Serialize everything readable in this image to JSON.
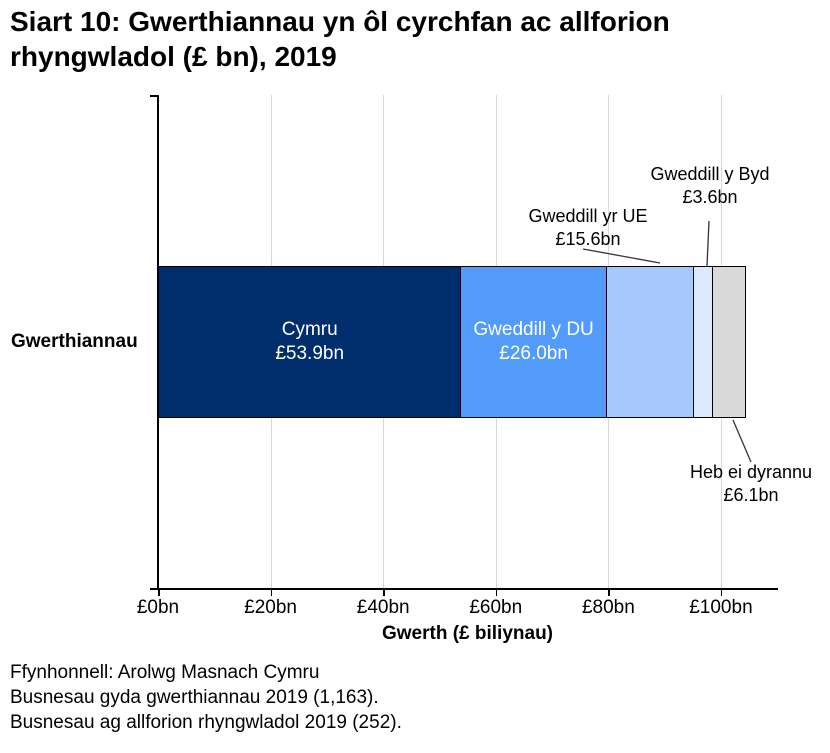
{
  "title": {
    "line1": "Siart 10: Gwerthiannau yn ôl cyrchfan ac allforion",
    "line2": "rhyngwladol (£ bn), 2019"
  },
  "chart_data": {
    "type": "bar",
    "orientation": "horizontal",
    "stacked": true,
    "category_label": "Gwerthiannau",
    "xlabel": "Gwerth (£ biliynau)",
    "xlim": [
      0,
      110
    ],
    "grid": true,
    "gridline_color": "#d9d9d9",
    "axis_color": "#000000",
    "x_ticks": [
      {
        "value": 0,
        "label": "£0bn"
      },
      {
        "value": 20,
        "label": "£20bn"
      },
      {
        "value": 40,
        "label": "£40bn"
      },
      {
        "value": 60,
        "label": "£60bn"
      },
      {
        "value": 80,
        "label": "£80bn"
      },
      {
        "value": 100,
        "label": "£100bn"
      }
    ],
    "segments": [
      {
        "name": "Cymru",
        "value": 53.9,
        "value_label": "£53.9bn",
        "color": "#002d6b",
        "label_inside": true,
        "label_color": "#ffffff"
      },
      {
        "name": "Gweddill y DU",
        "value": 26.0,
        "value_label": "£26.0bn",
        "color": "#529bfa",
        "label_inside": true,
        "label_color": "#ffffff"
      },
      {
        "name": "Gweddill yr UE",
        "value": 15.6,
        "value_label": "£15.6bn",
        "color": "#a6c8fc",
        "label_inside": false
      },
      {
        "name": "Gweddill y Byd",
        "value": 3.6,
        "value_label": "£3.6bn",
        "color": "#dce9fc",
        "label_inside": false
      },
      {
        "name": "Heb ei dyrannu",
        "value": 6.1,
        "value_label": "£6.1bn",
        "color": "#d9d9d9",
        "label_inside": false
      }
    ]
  },
  "footer": {
    "line1": "Ffynhonnell: Arolwg Masnach Cymru",
    "line2": "Busnesau gyda gwerthiannau 2019 (1,163).",
    "line3": "Busnesau ag allforion rhyngwladol 2019 (252)."
  }
}
